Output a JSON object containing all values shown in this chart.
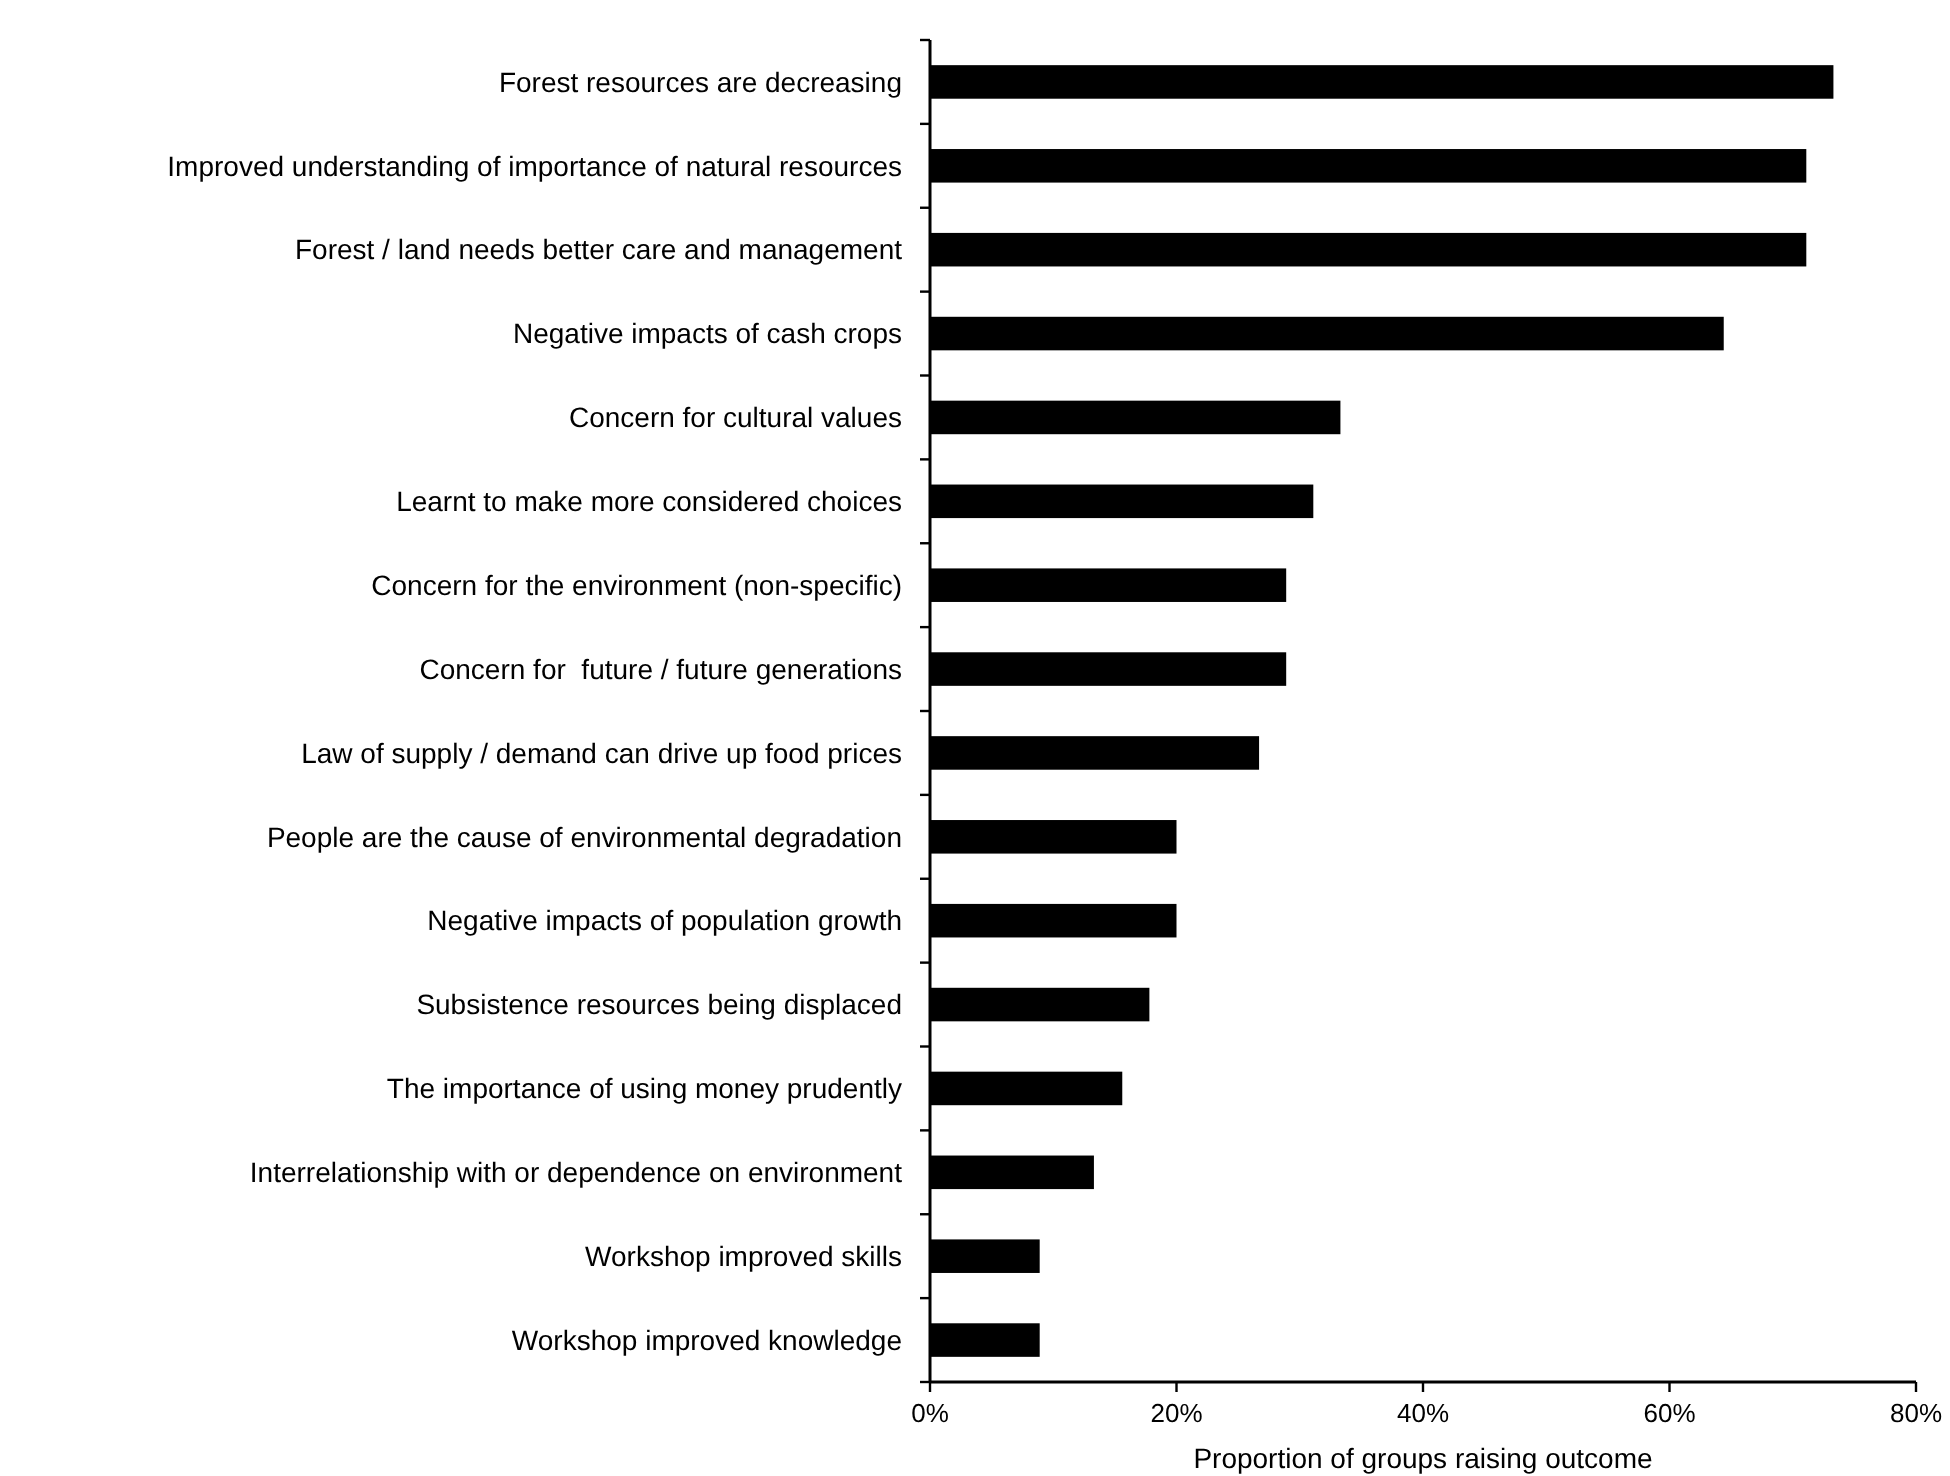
{
  "chart_data": {
    "type": "bar",
    "orientation": "horizontal",
    "xlabel": "Proportion of groups raising outcome",
    "categories": [
      "Forest resources are decreasing",
      "Improved understanding of importance of natural resources",
      "Forest / land needs better care and management",
      "Negative impacts of cash crops",
      "Concern for cultural values",
      "Learnt to make more considered choices",
      "Concern for the environment (non-specific)",
      "Concern for  future / future generations",
      "Law of supply / demand can drive up food prices",
      "People are the cause of environmental degradation",
      "Negative impacts of population growth",
      "Subsistence resources being displaced",
      "The importance of using money prudently",
      "Interrelationship with or dependence on environment",
      "Workshop improved skills",
      "Workshop improved knowledge"
    ],
    "values": [
      73.3,
      71.1,
      71.1,
      64.4,
      33.3,
      31.1,
      28.9,
      28.9,
      26.7,
      20,
      20,
      17.8,
      15.6,
      13.3,
      8.9,
      8.9
    ],
    "color": "#000000",
    "xlim": [
      0,
      80
    ],
    "xticks": [
      {
        "value": 0,
        "label": "0%"
      },
      {
        "value": 20,
        "label": "20%"
      },
      {
        "value": 40,
        "label": "40%"
      },
      {
        "value": 60,
        "label": "60%"
      },
      {
        "value": 80,
        "label": "80%"
      }
    ],
    "grid": false
  }
}
